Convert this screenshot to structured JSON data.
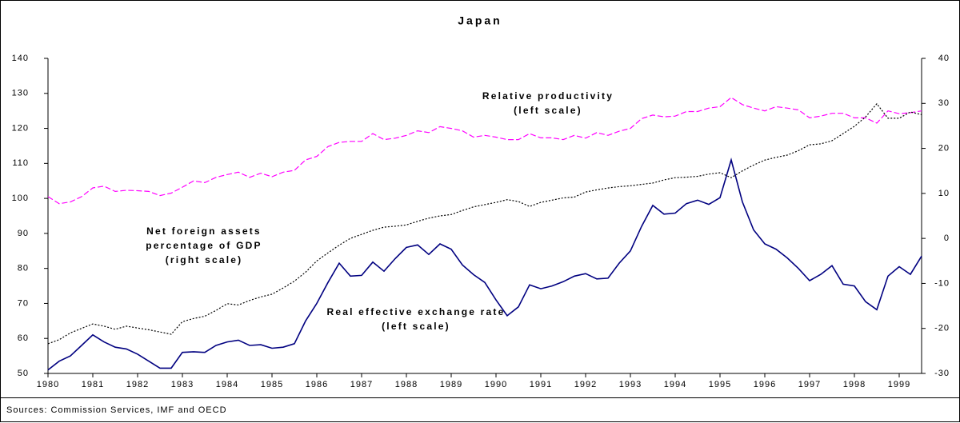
{
  "chart_data": {
    "type": "line",
    "title": "Japan",
    "source": "Sources: Commission Services, IMF and OECD",
    "annotations": [
      {
        "lines": [
          "Relative productivity",
          "(left scale)"
        ]
      },
      {
        "lines": [
          "Net foreign assets",
          "percentage of GDP",
          "(right scale)"
        ]
      },
      {
        "lines": [
          "Real effective exchange rate",
          "(left scale)"
        ]
      }
    ],
    "x": [
      1980,
      1980.25,
      1980.5,
      1980.75,
      1981,
      1981.25,
      1981.5,
      1981.75,
      1982,
      1982.25,
      1982.5,
      1982.75,
      1983,
      1983.25,
      1983.5,
      1983.75,
      1984,
      1984.25,
      1984.5,
      1984.75,
      1985,
      1985.25,
      1985.5,
      1985.75,
      1986,
      1986.25,
      1986.5,
      1986.75,
      1987,
      1987.25,
      1987.5,
      1987.75,
      1988,
      1988.25,
      1988.5,
      1988.75,
      1989,
      1989.25,
      1989.5,
      1989.75,
      1990,
      1990.25,
      1990.5,
      1990.75,
      1991,
      1991.25,
      1991.5,
      1991.75,
      1992,
      1992.25,
      1992.5,
      1992.75,
      1993,
      1993.25,
      1993.5,
      1993.75,
      1994,
      1994.25,
      1994.5,
      1994.75,
      1995,
      1995.25,
      1995.5,
      1995.75,
      1996,
      1996.25,
      1996.5,
      1996.75,
      1997,
      1997.25,
      1997.5,
      1997.75,
      1998,
      1998.25,
      1998.5,
      1998.75,
      1999,
      1999.25,
      1999.5
    ],
    "xlim": [
      1980,
      1999.5
    ],
    "xticks": [
      1980,
      1981,
      1982,
      1983,
      1984,
      1985,
      1986,
      1987,
      1988,
      1989,
      1990,
      1991,
      1992,
      1993,
      1994,
      1995,
      1996,
      1997,
      1998,
      1999
    ],
    "ylim": [
      50,
      140
    ],
    "yticks": [
      50,
      60,
      70,
      80,
      90,
      100,
      110,
      120,
      130,
      140
    ],
    "y2lim": [
      -30,
      40
    ],
    "y2ticks": [
      -30,
      -20,
      -10,
      0,
      10,
      20,
      30,
      40
    ],
    "series": [
      {
        "color": "#ff00ff",
        "dash": "dashed",
        "values": [
          100.5,
          98.5,
          99,
          100.5,
          103,
          103.5,
          102,
          102.3,
          102.2,
          102,
          100.8,
          101.5,
          103.2,
          105,
          104.5,
          106,
          106.8,
          107.5,
          106,
          107.2,
          106.2,
          107.5,
          108,
          111,
          112,
          114.8,
          116,
          116.3,
          116.3,
          118.5,
          116.8,
          117.2,
          118,
          119.3,
          118.8,
          120.5,
          120,
          119.3,
          117.5,
          118,
          117.5,
          116.8,
          116.8,
          118.5,
          117.3,
          117.3,
          116.8,
          118,
          117.2,
          118.8,
          118,
          119.2,
          120,
          122.8,
          123.8,
          123.3,
          123.5,
          124.8,
          124.8,
          125.8,
          126.2,
          128.8,
          126.8,
          125.8,
          125,
          126.2,
          125.8,
          125.3,
          123,
          123.5,
          124.3,
          124.3,
          123,
          123,
          121.5,
          125,
          124.2,
          124.5,
          125
        ]
      },
      {
        "color": "#000000",
        "dash": "dotted",
        "axis": "y2",
        "values": [
          -23.4,
          -22.5,
          -21,
          -20,
          -19,
          -19.5,
          -20.2,
          -19.5,
          -19.9,
          -20.3,
          -20.8,
          -21.3,
          -18.5,
          -17.8,
          -17.3,
          -16,
          -14.5,
          -14.8,
          -13.8,
          -13,
          -12.4,
          -11,
          -9.5,
          -7.5,
          -5,
          -3.2,
          -1.5,
          0,
          0.9,
          1.8,
          2.5,
          2.7,
          3,
          3.8,
          4.5,
          5,
          5.3,
          6.2,
          7,
          7.5,
          8,
          8.6,
          8.2,
          7.1,
          8,
          8.5,
          9,
          9.2,
          10.3,
          10.8,
          11.2,
          11.5,
          11.7,
          12,
          12.3,
          13,
          13.5,
          13.6,
          13.8,
          14.3,
          14.6,
          13.5,
          15,
          16.3,
          17.4,
          18,
          18.5,
          19.5,
          20.8,
          21,
          21.7,
          23.3,
          24.9,
          27,
          29.9,
          26.7,
          26.7,
          28.1,
          27.5
        ]
      },
      {
        "color": "#000080",
        "dash": "solid",
        "values": [
          51,
          53.5,
          55,
          58,
          61,
          59,
          57.5,
          57,
          55.5,
          53.5,
          51.5,
          51.5,
          56,
          56.2,
          56,
          58,
          59,
          59.5,
          58,
          58.2,
          57.2,
          57.5,
          58.5,
          65,
          70,
          76,
          81.5,
          77.8,
          78,
          81.8,
          79.2,
          82.8,
          86,
          86.7,
          84,
          87,
          85.5,
          81,
          78.2,
          76,
          71,
          66.5,
          69,
          75.3,
          74.2,
          75,
          76.2,
          77.8,
          78.5,
          77,
          77.2,
          81.5,
          85,
          92,
          98,
          95.5,
          95.8,
          98.5,
          99.5,
          98.3,
          100.2,
          111,
          99,
          91,
          87,
          85.5,
          83,
          80,
          76.5,
          78.3,
          80.8,
          75.5,
          75,
          70.5,
          68.2,
          77.8,
          80.5,
          78.3,
          83.5
        ]
      }
    ]
  }
}
